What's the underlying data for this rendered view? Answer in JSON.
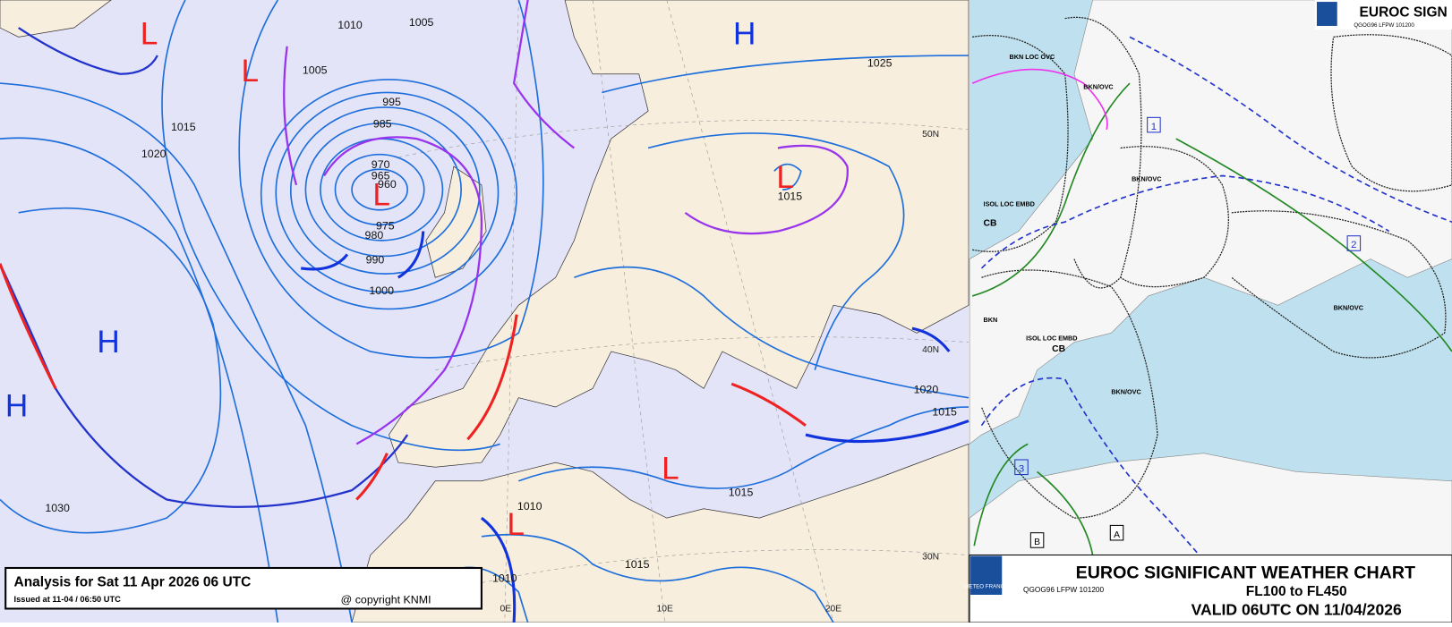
{
  "analysis_map": {
    "pressure_labels": [
      1010,
      1005,
      1005,
      995,
      1015,
      1020,
      985,
      970,
      965,
      960,
      975,
      980,
      990,
      1000,
      1030,
      1025,
      1015,
      1020,
      1015,
      1015,
      1010,
      1015,
      1010
    ],
    "centers": [
      "L",
      "L",
      "L",
      "L",
      "L",
      "L",
      "H",
      "H",
      "H"
    ],
    "graticule_labels": [
      "50N",
      "40N",
      "30N",
      "0E",
      "10E",
      "20E"
    ],
    "caption": {
      "title": "Analysis for Sat 11 Apr 2026 06 UTC",
      "issued": "Issued at 11-04 / 06:50 UTC",
      "copyright": "@ copyright KNMI"
    }
  },
  "sigwx_chart": {
    "top_title": "EUROC SIGN",
    "top_id": "QGOG96 LFPW 101200",
    "logo": "METEO FRANCE",
    "title": "EUROC SIGNIFICANT WEATHER CHART",
    "levels": "FL100 to FL450",
    "valid": "VALID 06UTC ON 11/04/2026",
    "id": "QGOG96 LFPW 101200",
    "cloud_labels": [
      "BKN LOC OVC",
      "BKN/OVC",
      "ISOL LOC EMBD",
      "CB",
      "BKN/OVC",
      "BKN",
      "ISOL LOC EMBD",
      "BKN/OVC",
      "BKN/OVC",
      "CB"
    ],
    "area_numbers": [
      "1",
      "2",
      "3"
    ],
    "zone_letters": [
      "A",
      "B"
    ]
  }
}
